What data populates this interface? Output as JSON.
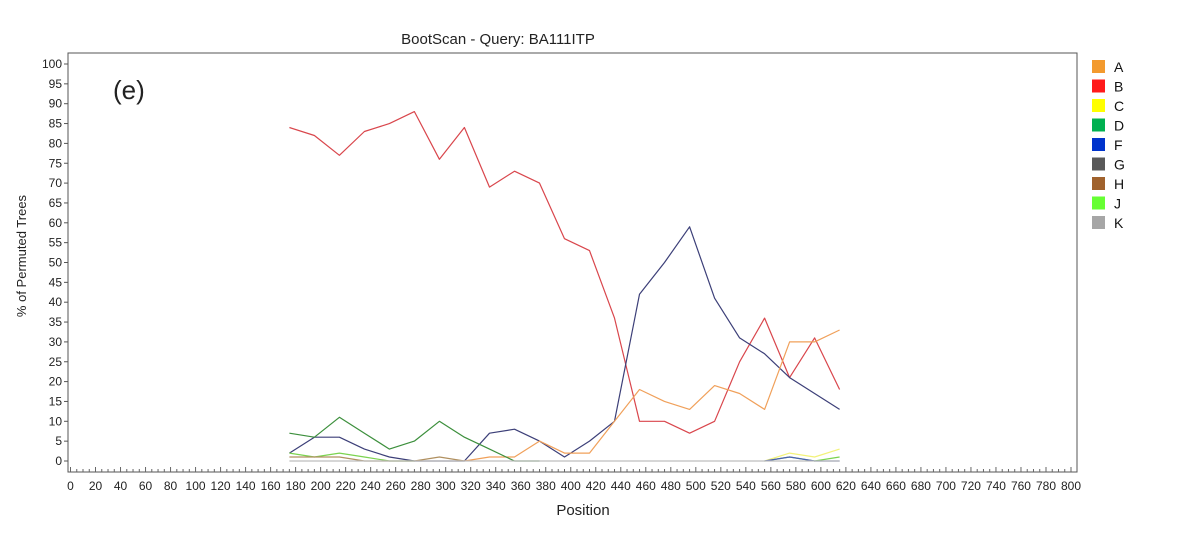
{
  "chart_data": {
    "type": "line",
    "title": "BootScan - Query: BA111ITP",
    "panel_label": "(e)",
    "xlabel": "Position",
    "ylabel": "% of Permuted Trees",
    "xlim": [
      0,
      800
    ],
    "ylim": [
      0,
      100
    ],
    "xticks": [
      0,
      20,
      40,
      60,
      80,
      100,
      120,
      140,
      160,
      180,
      200,
      220,
      240,
      260,
      280,
      300,
      320,
      340,
      360,
      380,
      400,
      420,
      440,
      460,
      480,
      500,
      520,
      540,
      560,
      580,
      600,
      620,
      640,
      660,
      680,
      700,
      720,
      740,
      760,
      780,
      800
    ],
    "yticks": [
      0,
      5,
      10,
      15,
      20,
      25,
      30,
      35,
      40,
      45,
      50,
      55,
      60,
      65,
      70,
      75,
      80,
      85,
      90,
      95,
      100
    ],
    "grid": false,
    "legend_position": "right",
    "legend": [
      {
        "name": "A",
        "color": "#f39a2e"
      },
      {
        "name": "B",
        "color": "#ff1a1a"
      },
      {
        "name": "C",
        "color": "#ffff00"
      },
      {
        "name": "D",
        "color": "#00b050"
      },
      {
        "name": "F",
        "color": "#0033cc"
      },
      {
        "name": "G",
        "color": "#595959"
      },
      {
        "name": "H",
        "color": "#a0622d"
      },
      {
        "name": "J",
        "color": "#66ff33"
      },
      {
        "name": "K",
        "color": "#a6a6a6"
      }
    ],
    "x": [
      175,
      195,
      215,
      235,
      255,
      275,
      295,
      315,
      335,
      355,
      375,
      395,
      415,
      435,
      455,
      475,
      495,
      515,
      535,
      555,
      575,
      595,
      615
    ],
    "series": [
      {
        "name": "B",
        "color": "#d9464c",
        "values": [
          84,
          82,
          77,
          83,
          85,
          88,
          76,
          84,
          69,
          73,
          70,
          56,
          53,
          36,
          10,
          10,
          7,
          10,
          25,
          36,
          21,
          31,
          18
        ]
      },
      {
        "name": "G",
        "color": "#3c3f78",
        "values": [
          2,
          6,
          6,
          3,
          1,
          0,
          0,
          0,
          7,
          8,
          5,
          1,
          5,
          10,
          42,
          50,
          59,
          41,
          31,
          27,
          21,
          17,
          13
        ]
      },
      {
        "name": "A",
        "color": "#f0a05a",
        "values": [
          null,
          null,
          null,
          null,
          null,
          null,
          null,
          0,
          1,
          1,
          5,
          2,
          2,
          10,
          18,
          15,
          13,
          19,
          17,
          13,
          30,
          30,
          33
        ]
      },
      {
        "name": "D",
        "color": "#3c8f3c",
        "values": [
          7,
          6,
          11,
          7,
          3,
          5,
          10,
          6,
          3,
          0,
          0,
          null,
          null,
          null,
          null,
          null,
          null,
          null,
          null,
          null,
          null,
          null,
          null
        ]
      },
      {
        "name": "J",
        "color": "#7bd34f",
        "values": [
          2,
          1,
          2,
          1,
          0,
          0,
          null,
          null,
          null,
          null,
          null,
          null,
          null,
          null,
          null,
          null,
          null,
          null,
          null,
          0,
          1,
          0,
          1
        ]
      },
      {
        "name": "H",
        "color": "#b09060",
        "values": [
          1,
          1,
          1,
          0,
          0,
          0,
          1,
          0,
          null,
          null,
          null,
          null,
          null,
          null,
          null,
          null,
          null,
          null,
          null,
          null,
          null,
          null,
          null
        ]
      },
      {
        "name": "C",
        "color": "#f2f27a",
        "values": [
          null,
          null,
          null,
          null,
          null,
          null,
          null,
          null,
          null,
          null,
          null,
          null,
          null,
          null,
          null,
          null,
          null,
          null,
          null,
          0,
          2,
          1,
          3
        ]
      },
      {
        "name": "F",
        "color": "#4a5fb0",
        "values": [
          null,
          null,
          null,
          null,
          null,
          null,
          null,
          null,
          null,
          null,
          null,
          null,
          null,
          null,
          null,
          null,
          null,
          null,
          null,
          0,
          1,
          0,
          0
        ]
      },
      {
        "name": "K",
        "color": "#bdbdbd",
        "values": [
          0,
          0,
          0,
          0,
          0,
          0,
          0,
          0,
          0,
          0,
          0,
          0,
          0,
          0,
          0,
          0,
          0,
          0,
          0,
          0,
          0,
          0,
          0
        ]
      }
    ]
  }
}
